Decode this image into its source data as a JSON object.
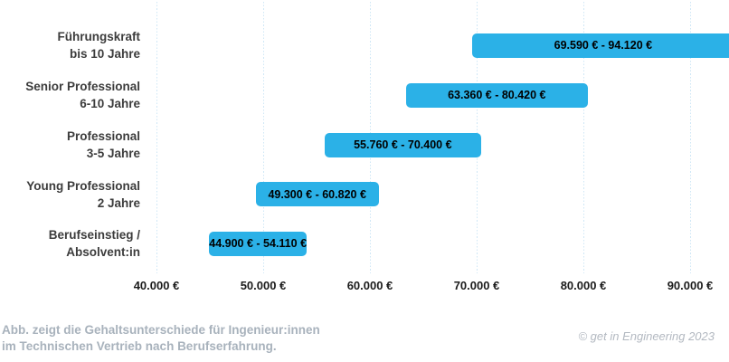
{
  "footer": {
    "line1": "Abb. zeigt die Gehaltsunterschiede für Ingenieur:innen",
    "line2": "im Technischen Vertrieb nach Berufserfahrung.",
    "copyright": "© get in Engineering 2023"
  },
  "colors": {
    "bar": "#2BB1E7",
    "bar_label": "#000000",
    "category_label": "#3C3C3C",
    "tick_label": "#1B1B1B",
    "gridline": "#CFE7F6",
    "footer_note": "#A8B2BC",
    "copyright": "#B3B9C1",
    "background": "#FFFFFF"
  },
  "chart_data": {
    "type": "bar",
    "subtype": "horizontal-range-bars",
    "title": "",
    "xlabel": "",
    "ylabel": "",
    "unit": "EUR",
    "grid": "vertical-dotted",
    "legend": "none",
    "xlim": [
      40000,
      94120
    ],
    "rows": [
      {
        "category": "Führungskraft\nbis 10 Jahre",
        "min": 69590,
        "max": 94120,
        "range_label": "69.590 €  -  94.120 €"
      },
      {
        "category": "Senior Professional\n6-10 Jahre",
        "min": 63360,
        "max": 80420,
        "range_label": "63.360 €  - 80.420 €"
      },
      {
        "category": "Professional\n3-5 Jahre",
        "min": 55760,
        "max": 70400,
        "range_label": "55.760 €  -  70.400 €"
      },
      {
        "category": "Young Professional\n2 Jahre",
        "min": 49300,
        "max": 60820,
        "range_label": "49.300 €  -  60.820 €"
      },
      {
        "category": "Berufseinstieg /\nAbsolvent:in",
        "min": 44900,
        "max": 54110,
        "range_label": "44.900 € -  54.110 €"
      }
    ],
    "x_ticks": [
      {
        "value": 40000,
        "label": "40.000 €"
      },
      {
        "value": 50000,
        "label": "50.000 €"
      },
      {
        "value": 60000,
        "label": "60.000 €"
      },
      {
        "value": 70000,
        "label": "70.000 €"
      },
      {
        "value": 80000,
        "label": "80.000 €"
      },
      {
        "value": 90000,
        "label": "90.000 €"
      }
    ]
  }
}
